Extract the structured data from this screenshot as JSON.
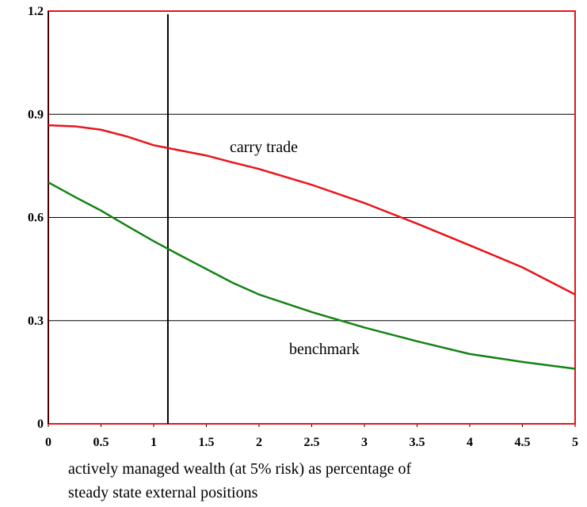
{
  "chart_data": {
    "type": "line",
    "x": [
      0,
      0.25,
      0.5,
      0.75,
      1,
      1.25,
      1.5,
      1.75,
      2,
      2.5,
      3,
      3.5,
      4,
      4.5,
      5
    ],
    "series": [
      {
        "name": "carry trade",
        "color": "#e8141a",
        "values": [
          0.868,
          0.865,
          0.855,
          0.835,
          0.81,
          0.795,
          0.78,
          0.76,
          0.741,
          0.695,
          0.642,
          0.582,
          0.519,
          0.455,
          0.376
        ]
      },
      {
        "name": "benchmark",
        "color": "#148214",
        "values": [
          0.702,
          0.66,
          0.62,
          0.575,
          0.531,
          0.49,
          0.45,
          0.41,
          0.376,
          0.325,
          0.28,
          0.24,
          0.203,
          0.18,
          0.16
        ]
      }
    ],
    "xlim": [
      0,
      5
    ],
    "ylim": [
      0,
      1.2
    ],
    "xticks": [
      0,
      0.5,
      1,
      1.5,
      2,
      2.5,
      3,
      3.5,
      4,
      4.5,
      5
    ],
    "yticks": [
      0,
      0.3,
      0.6,
      0.9,
      1.2
    ],
    "vline": 1.135,
    "grid": true,
    "xlabel": [
      "actively managed wealth (at 5% risk) as percentage of",
      "steady state external positions"
    ]
  }
}
